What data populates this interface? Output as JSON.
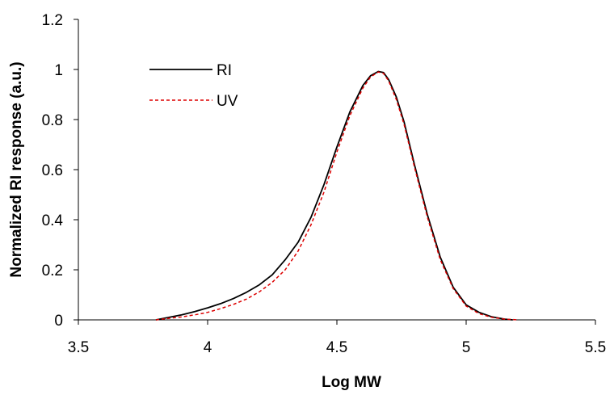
{
  "chart_data": {
    "type": "line",
    "title": "",
    "xlabel": "Log MW",
    "ylabel": "Normalized RI response (a.u.)",
    "xlim": [
      3.5,
      5.5
    ],
    "ylim": [
      0,
      1.2
    ],
    "xticks": [
      3.5,
      4,
      4.5,
      5,
      5.5
    ],
    "xtick_labels": [
      "3.5",
      "4",
      "4.5",
      "5",
      "5.5"
    ],
    "yticks": [
      0,
      0.2,
      0.4,
      0.6,
      0.8,
      1,
      1.2
    ],
    "ytick_labels": [
      "0",
      "0.2",
      "0.4",
      "0.6",
      "0.8",
      "1",
      "1.2"
    ],
    "grid": false,
    "legend": {
      "placement": "top-left"
    },
    "series": [
      {
        "name": "RI",
        "color": "#000000",
        "dash": "solid",
        "x": [
          3.8,
          3.85,
          3.9,
          3.95,
          4.0,
          4.05,
          4.1,
          4.15,
          4.2,
          4.25,
          4.3,
          4.35,
          4.4,
          4.45,
          4.5,
          4.55,
          4.6,
          4.63,
          4.66,
          4.68,
          4.7,
          4.73,
          4.76,
          4.8,
          4.85,
          4.9,
          4.95,
          5.0,
          5.05,
          5.1,
          5.15,
          5.18
        ],
        "y": [
          0.0,
          0.01,
          0.02,
          0.033,
          0.048,
          0.065,
          0.085,
          0.11,
          0.14,
          0.18,
          0.24,
          0.31,
          0.41,
          0.54,
          0.69,
          0.83,
          0.935,
          0.975,
          0.992,
          0.988,
          0.96,
          0.89,
          0.79,
          0.62,
          0.42,
          0.25,
          0.13,
          0.06,
          0.03,
          0.012,
          0.003,
          0.0
        ]
      },
      {
        "name": "UV",
        "color": "#dd0000",
        "dash": "dashed",
        "x": [
          3.8,
          3.85,
          3.9,
          3.95,
          4.0,
          4.05,
          4.1,
          4.15,
          4.2,
          4.25,
          4.3,
          4.35,
          4.4,
          4.45,
          4.5,
          4.55,
          4.6,
          4.63,
          4.66,
          4.68,
          4.7,
          4.73,
          4.76,
          4.8,
          4.85,
          4.9,
          4.95,
          5.0,
          5.05,
          5.1,
          5.15,
          5.2
        ],
        "y": [
          0.0,
          0.006,
          0.012,
          0.02,
          0.03,
          0.045,
          0.062,
          0.083,
          0.112,
          0.15,
          0.2,
          0.275,
          0.38,
          0.51,
          0.67,
          0.815,
          0.925,
          0.97,
          0.99,
          0.985,
          0.955,
          0.88,
          0.78,
          0.61,
          0.41,
          0.24,
          0.125,
          0.055,
          0.025,
          0.01,
          0.003,
          0.0
        ]
      }
    ]
  }
}
